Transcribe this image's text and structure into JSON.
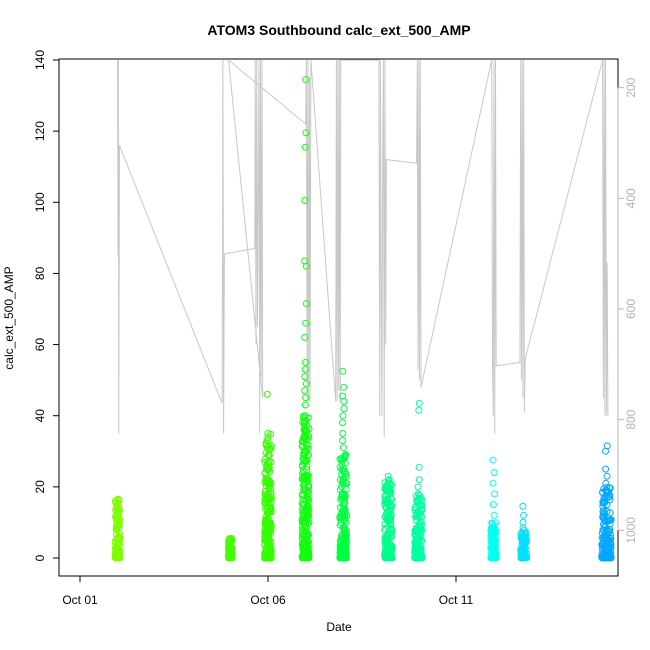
{
  "chart_data": {
    "type": "scatter",
    "title": "ATOM3 Southbound calc_ext_500_AMP",
    "xlabel": "Date",
    "ylabel": "calc_ext_500_AMP",
    "xlim": [
      "2015-09-30T16:00",
      "2015-10-15T12:00"
    ],
    "ylim": [
      0,
      140
    ],
    "y2lim": [
      1050,
      150
    ],
    "y2_reversed": true,
    "x_ticks": [
      {
        "date": "2015-10-01",
        "label": "Oct 01"
      },
      {
        "date": "2015-10-06",
        "label": "Oct 06"
      },
      {
        "date": "2015-10-11",
        "label": "Oct 11"
      }
    ],
    "y_ticks": [
      0,
      20,
      40,
      60,
      80,
      100,
      120,
      140
    ],
    "y2_ticks": [
      200,
      400,
      600,
      800,
      1000
    ],
    "grid": false,
    "point_series": [
      {
        "day": 1.0,
        "width": 0.13,
        "color": "#7FFF00",
        "ymax": 16.5,
        "outliers": [
          12,
          13,
          14,
          15,
          16.5
        ]
      },
      {
        "day": 4.0,
        "width": 0.1,
        "color": "#44FF00",
        "ymax": 5.5,
        "outliers": [
          4.5,
          5,
          5.5
        ]
      },
      {
        "day": 5.0,
        "width": 0.18,
        "color": "#33FF00",
        "ymax": 35,
        "outliers": [
          46,
          35,
          33,
          31,
          29,
          27,
          25
        ]
      },
      {
        "day": 6.0,
        "width": 0.18,
        "color": "#11FF11",
        "ymax": 40,
        "outliers": [
          134.5,
          119.5,
          115.5,
          100.5,
          83.5,
          82,
          71.5,
          66,
          62,
          55,
          53,
          51,
          49,
          47,
          45,
          43,
          40,
          38,
          36,
          34,
          32,
          30
        ]
      },
      {
        "day": 7.0,
        "width": 0.18,
        "color": "#00FF40",
        "ymax": 30,
        "outliers": [
          52.5,
          48,
          45.5,
          44,
          42,
          40,
          38,
          35,
          33,
          31
        ]
      },
      {
        "day": 8.2,
        "width": 0.2,
        "color": "#00FF88",
        "ymax": 22,
        "outliers": [
          23,
          22,
          20,
          18,
          16
        ]
      },
      {
        "day": 9.0,
        "width": 0.2,
        "color": "#00FFA0",
        "ymax": 18,
        "outliers": [
          43.5,
          41.5,
          25.5,
          22,
          20,
          18
        ]
      },
      {
        "day": 11.0,
        "width": 0.15,
        "color": "#00FFEE",
        "ymax": 10,
        "outliers": [
          27.5,
          24,
          21,
          18,
          15,
          12
        ]
      },
      {
        "day": 11.8,
        "width": 0.16,
        "color": "#00E0FF",
        "ymax": 8,
        "outliers": [
          14.5,
          12,
          10,
          8.5
        ]
      },
      {
        "day": 14.0,
        "width": 0.25,
        "color": "#00A8FF",
        "ymax": 20,
        "outliers": [
          31.5,
          30,
          25,
          23,
          21,
          19,
          17,
          15
        ]
      }
    ],
    "depth_trace": {
      "color": "#c8c8c8",
      "points": [
        [
          1.0,
          140
        ],
        [
          1.01,
          85
        ],
        [
          1.02,
          140
        ],
        [
          1.03,
          35
        ],
        [
          1.05,
          116
        ],
        [
          3.78,
          43.5
        ],
        [
          3.8,
          140
        ],
        [
          3.82,
          35
        ],
        [
          3.84,
          85.5
        ],
        [
          4.65,
          87
        ],
        [
          4.66,
          140
        ],
        [
          4.68,
          60
        ],
        [
          4.7,
          140
        ],
        [
          4.72,
          65
        ],
        [
          4.74,
          102
        ],
        [
          4.76,
          140
        ],
        [
          4.78,
          35
        ],
        [
          4.8,
          140
        ],
        [
          4.82,
          51
        ],
        [
          4.84,
          140
        ],
        [
          4.86,
          45
        ],
        [
          3.95,
          140
        ],
        [
          6.0,
          122
        ],
        [
          6.02,
          140
        ],
        [
          6.04,
          45
        ],
        [
          6.06,
          140
        ],
        [
          6.08,
          44
        ],
        [
          6.1,
          135
        ],
        [
          6.12,
          44
        ],
        [
          6.14,
          140
        ],
        [
          6.8,
          44
        ],
        [
          6.82,
          140
        ],
        [
          6.84,
          44
        ],
        [
          6.86,
          140
        ],
        [
          6.88,
          47
        ],
        [
          6.9,
          140
        ],
        [
          6.92,
          44
        ],
        [
          6.94,
          140
        ],
        [
          7.95,
          140
        ],
        [
          7.97,
          40
        ],
        [
          7.99,
          140
        ],
        [
          8.01,
          78
        ],
        [
          8.03,
          40
        ],
        [
          8.05,
          113
        ],
        [
          8.07,
          140
        ],
        [
          8.09,
          34
        ],
        [
          8.11,
          140
        ],
        [
          8.13,
          60
        ],
        [
          8.15,
          112
        ],
        [
          8.95,
          111
        ],
        [
          8.97,
          140
        ],
        [
          8.99,
          53
        ],
        [
          9.01,
          140
        ],
        [
          9.03,
          50
        ],
        [
          9.05,
          140
        ],
        [
          9.07,
          48
        ],
        [
          10.95,
          140
        ],
        [
          10.97,
          54
        ],
        [
          10.99,
          40
        ],
        [
          11.01,
          140
        ],
        [
          11.03,
          35
        ],
        [
          11.05,
          140
        ],
        [
          11.07,
          54
        ],
        [
          11.7,
          55
        ],
        [
          11.72,
          140
        ],
        [
          11.74,
          50
        ],
        [
          11.76,
          140
        ],
        [
          11.78,
          45
        ],
        [
          11.8,
          140
        ],
        [
          11.82,
          41
        ],
        [
          11.84,
          56
        ],
        [
          13.9,
          140
        ],
        [
          13.92,
          45
        ],
        [
          13.94,
          140
        ],
        [
          13.96,
          40
        ],
        [
          13.98,
          140
        ],
        [
          14.0,
          40
        ],
        [
          14.02,
          83
        ],
        [
          14.04,
          40
        ]
      ]
    }
  }
}
